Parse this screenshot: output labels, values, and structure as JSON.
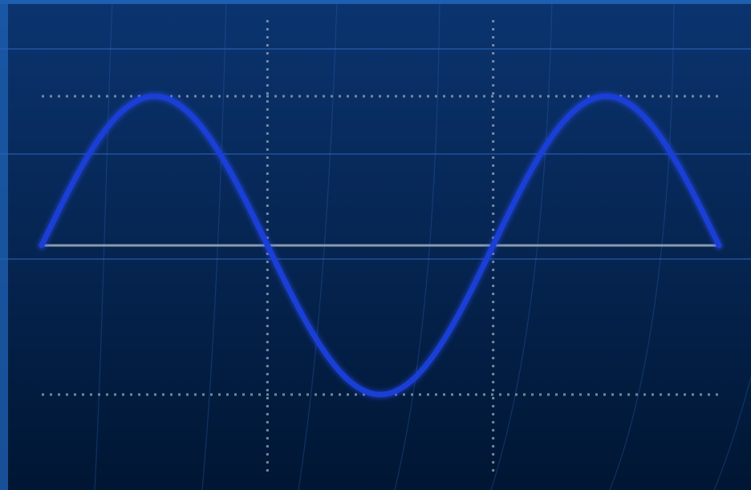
{
  "colors": {
    "background_top": "#0b3470",
    "background_bottom": "#001633",
    "frame_edge": "#1d5fb0",
    "backdrop_line": "#2a63b5",
    "grid_dot": "#8a9bb0",
    "axis_line": "#9aa8b8",
    "wave": "#1a3fd6",
    "wave_glow": "#2f4fff"
  },
  "chart_data": {
    "type": "line",
    "title": "",
    "xlabel": "",
    "ylabel": "",
    "function": "sine",
    "amplitude": 1,
    "cycles": 1.5,
    "start_phase": 0,
    "x_range": [
      0,
      1.5
    ],
    "y_range": [
      -1,
      1
    ],
    "x_gridlines": [
      0.5,
      1.0
    ],
    "y_gridlines": [
      1,
      -1
    ],
    "baseline": 0,
    "grid": "dotted",
    "legend": "none",
    "sample_count": 181,
    "series": [
      {
        "values_description_free": true
      }
    ]
  }
}
